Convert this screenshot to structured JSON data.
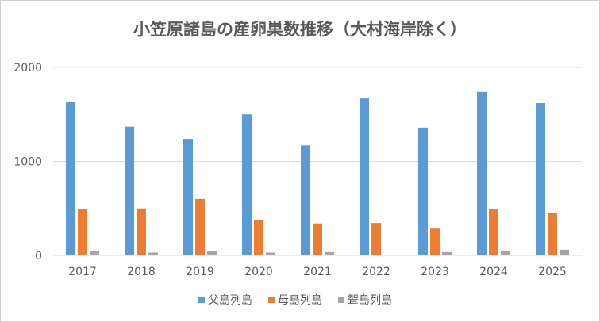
{
  "chart_data": {
    "type": "bar",
    "title": "小笠原諸島の産卵巣数推移（大村海岸除く）",
    "categories": [
      "2017",
      "2018",
      "2019",
      "2020",
      "2021",
      "2022",
      "2023",
      "2024",
      "2025"
    ],
    "series": [
      {
        "name": "父島列島",
        "color": "#5b9bd5",
        "values": [
          1630,
          1370,
          1240,
          1500,
          1170,
          1670,
          1360,
          1740,
          1620
        ]
      },
      {
        "name": "母島列島",
        "color": "#ed7d31",
        "values": [
          490,
          500,
          600,
          380,
          340,
          345,
          285,
          490,
          455
        ]
      },
      {
        "name": "聟島列島",
        "color": "#a5a5a5",
        "values": [
          45,
          30,
          45,
          30,
          35,
          0,
          35,
          45,
          60
        ]
      }
    ],
    "yticks": [
      "0",
      "1000",
      "2000"
    ],
    "ylim": [
      0,
      2000
    ],
    "grid": true,
    "legend_position": "bottom"
  }
}
